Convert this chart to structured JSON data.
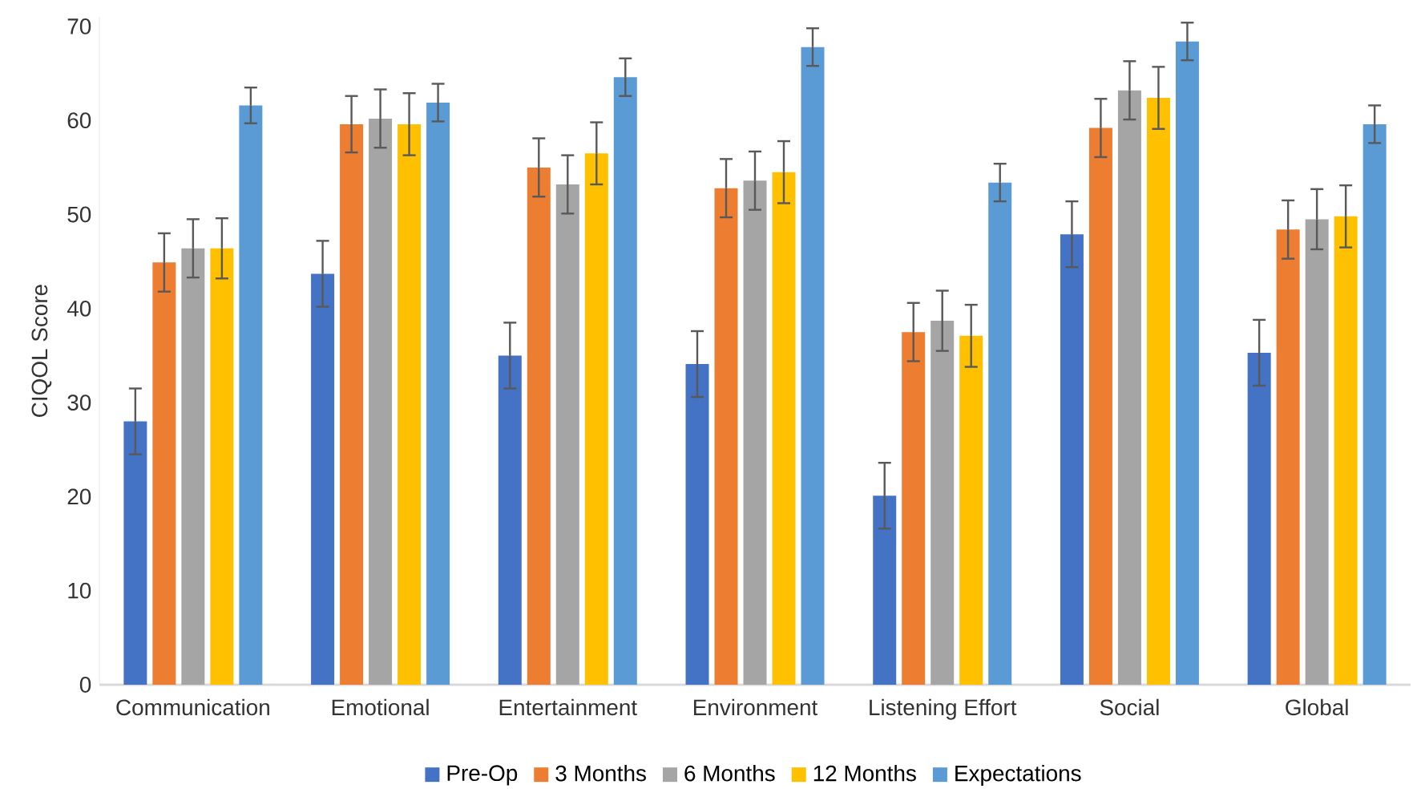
{
  "chart_data": {
    "type": "bar",
    "ylabel": "CIQOL Score",
    "categories": [
      "Communication",
      "Emotional",
      "Entertainment",
      "Environment",
      "Listening Effort",
      "Social",
      "Global"
    ],
    "series": [
      {
        "name": "Pre-Op",
        "color": "#4472c4",
        "values": [
          28.0,
          43.7,
          35.0,
          34.1,
          20.1,
          47.9,
          35.3
        ],
        "errors": [
          3.5,
          3.5,
          3.5,
          3.5,
          3.5,
          3.5,
          3.5
        ]
      },
      {
        "name": "3 Months",
        "color": "#ed7d31",
        "values": [
          44.9,
          59.6,
          55.0,
          52.8,
          37.5,
          59.2,
          48.4
        ],
        "errors": [
          3.1,
          3.0,
          3.1,
          3.1,
          3.1,
          3.1,
          3.1
        ]
      },
      {
        "name": "6 Months",
        "color": "#a5a5a5",
        "values": [
          46.4,
          60.2,
          53.2,
          53.6,
          38.7,
          63.2,
          49.5
        ],
        "errors": [
          3.1,
          3.1,
          3.1,
          3.1,
          3.2,
          3.1,
          3.2
        ]
      },
      {
        "name": "12 Months",
        "color": "#ffc000",
        "values": [
          46.4,
          59.6,
          56.5,
          54.5,
          37.1,
          62.4,
          49.8
        ],
        "errors": [
          3.2,
          3.3,
          3.3,
          3.3,
          3.3,
          3.3,
          3.3
        ]
      },
      {
        "name": "Expectations",
        "color": "#5b9bd5",
        "values": [
          61.6,
          61.9,
          64.6,
          67.8,
          53.4,
          68.4,
          59.6
        ],
        "errors": [
          1.9,
          2.0,
          2.0,
          2.0,
          2.0,
          2.0,
          2.0
        ]
      }
    ],
    "ylim": [
      0,
      71
    ],
    "yticks": [
      0,
      10,
      20,
      30,
      40,
      50,
      60,
      70
    ],
    "grid": false,
    "legend": "bottom"
  }
}
